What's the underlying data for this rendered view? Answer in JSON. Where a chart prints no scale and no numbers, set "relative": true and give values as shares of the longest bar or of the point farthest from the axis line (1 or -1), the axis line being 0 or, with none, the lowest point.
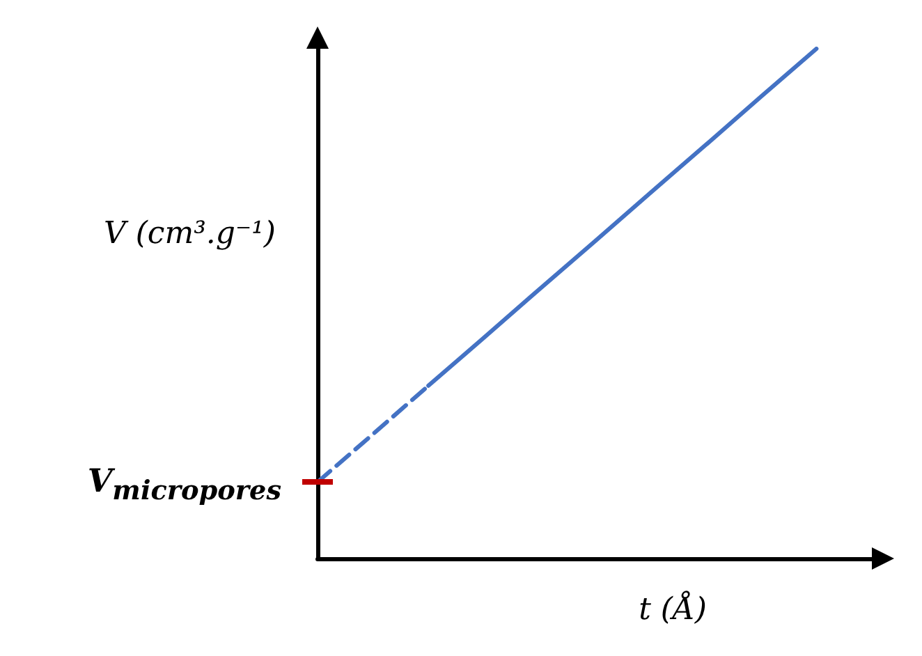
{
  "chart_data": {
    "type": "line",
    "relative": true,
    "xlabel": "t (Å)",
    "ylabel": "V (cm³.g⁻¹)",
    "categories": [
      null,
      null,
      null,
      null,
      null,
      null,
      null,
      null,
      null,
      null,
      null
    ],
    "series": [
      {
        "color": "#4472c4",
        "line_style": "dashed",
        "values": [
          0.15,
          0.244,
          0.339,
          null,
          null,
          null,
          null,
          null,
          null,
          null,
          null
        ]
      },
      {
        "color": "#4472c4",
        "line_style": "solid",
        "values": [
          null,
          null,
          0.339,
          0.433,
          0.528,
          0.622,
          0.717,
          0.811,
          0.906,
          1,
          null
        ]
      }
    ],
    "annotations": [
      "V$_{micropores}$"
    ],
    "marker": "none",
    "grid": false
  }
}
